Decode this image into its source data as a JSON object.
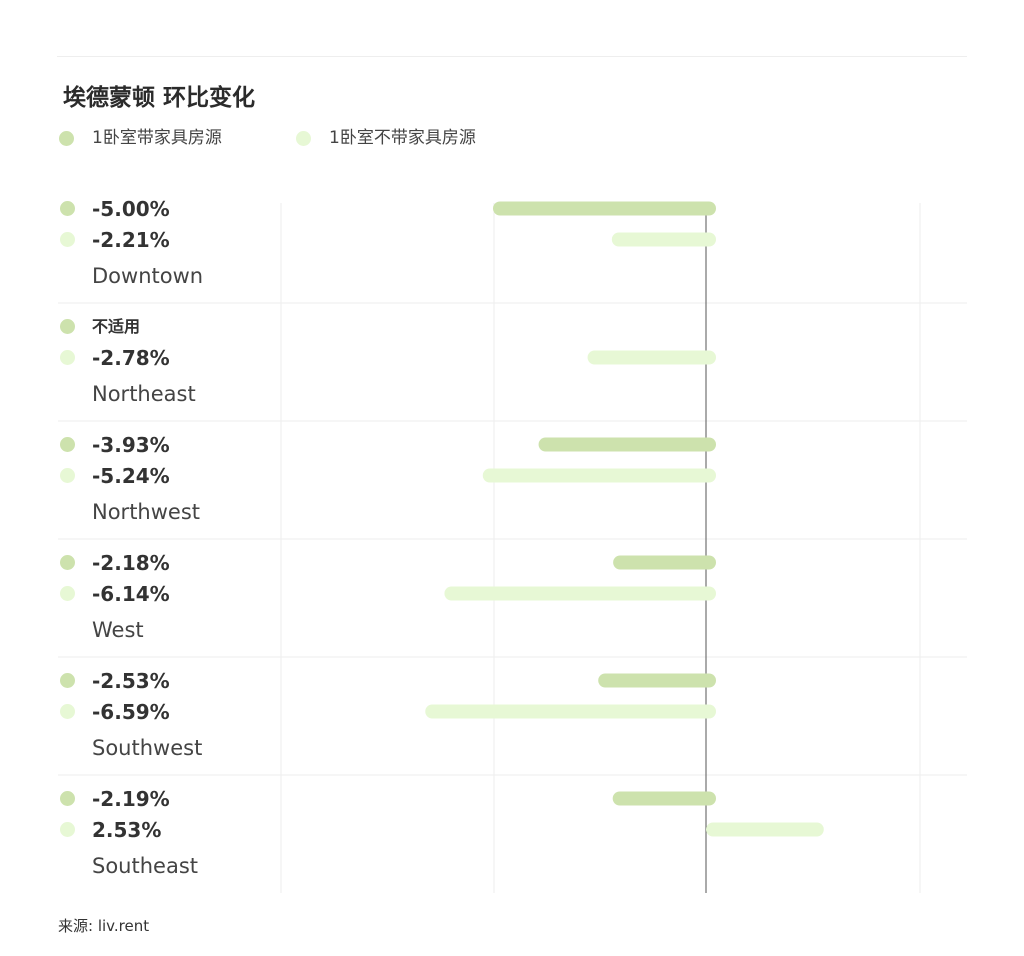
{
  "colors": {
    "furnished": "#cde2ad",
    "unfurnished": "#e7f8d5",
    "grid": "#eeeeee",
    "zero_line": "#555555"
  },
  "chart_data": {
    "type": "bar",
    "orientation": "horizontal",
    "title": "埃德蒙顿 环比变化",
    "legend": [
      "1卧室带家具房源",
      "1卧室不带家具房源"
    ],
    "legend_position": "top-left",
    "grid": true,
    "categories": [
      "Downtown",
      "Northeast",
      "Northwest",
      "West",
      "Southwest",
      "Southeast"
    ],
    "series": [
      {
        "name": "1卧室带家具房源",
        "values": [
          -5.0,
          null,
          -3.93,
          -2.18,
          -2.53,
          -2.19
        ],
        "labels": [
          "-5.00%",
          "不适用",
          "-3.93%",
          "-2.18%",
          "-2.53%",
          "-2.19%"
        ]
      },
      {
        "name": "1卧室不带家具房源",
        "values": [
          -2.21,
          -2.78,
          -5.24,
          -6.14,
          -6.59,
          2.53
        ],
        "labels": [
          "-2.21%",
          "-2.78%",
          "-5.24%",
          "-6.14%",
          "-6.59%",
          "2.53%"
        ]
      }
    ],
    "xlim": [
      -10,
      5
    ]
  },
  "source": "来源: liv.rent"
}
